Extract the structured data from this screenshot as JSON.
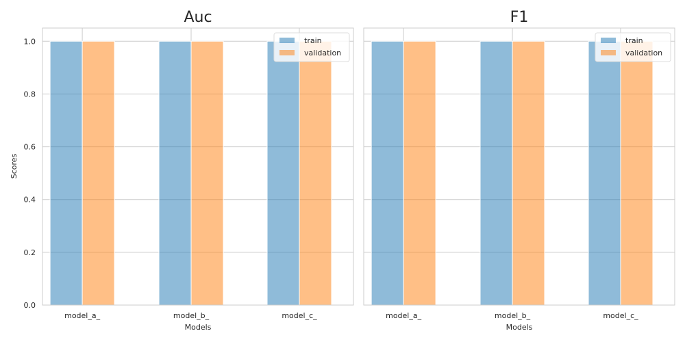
{
  "chart_data": [
    {
      "type": "bar",
      "title": "Auc",
      "xlabel": "Models",
      "ylabel": "Scores",
      "categories": [
        "model_a_",
        "model_b_",
        "model_c_"
      ],
      "series": [
        {
          "name": "train",
          "values": [
            1.0,
            1.0,
            1.0
          ],
          "color": "#1f77b4"
        },
        {
          "name": "validation",
          "values": [
            1.0,
            1.0,
            1.0
          ],
          "color": "#ff7f0e"
        }
      ],
      "ylim": [
        0,
        1.05
      ],
      "yticks": [
        0.0,
        0.2,
        0.4,
        0.6,
        0.8,
        1.0
      ],
      "ytick_labels": [
        "0.0",
        "0.2",
        "0.4",
        "0.6",
        "0.8",
        "1.0"
      ],
      "grid": true,
      "legend": "top-right"
    },
    {
      "type": "bar",
      "title": "F1",
      "xlabel": "Models",
      "ylabel": "",
      "categories": [
        "model_a_",
        "model_b_",
        "model_c_"
      ],
      "series": [
        {
          "name": "train",
          "values": [
            1.0,
            1.0,
            1.0
          ],
          "color": "#1f77b4"
        },
        {
          "name": "validation",
          "values": [
            1.0,
            1.0,
            1.0
          ],
          "color": "#ff7f0e"
        }
      ],
      "ylim": [
        0,
        1.05
      ],
      "yticks": [
        0.0,
        0.2,
        0.4,
        0.6,
        0.8,
        1.0
      ],
      "ytick_labels": [],
      "grid": true,
      "legend": "top-right"
    }
  ]
}
